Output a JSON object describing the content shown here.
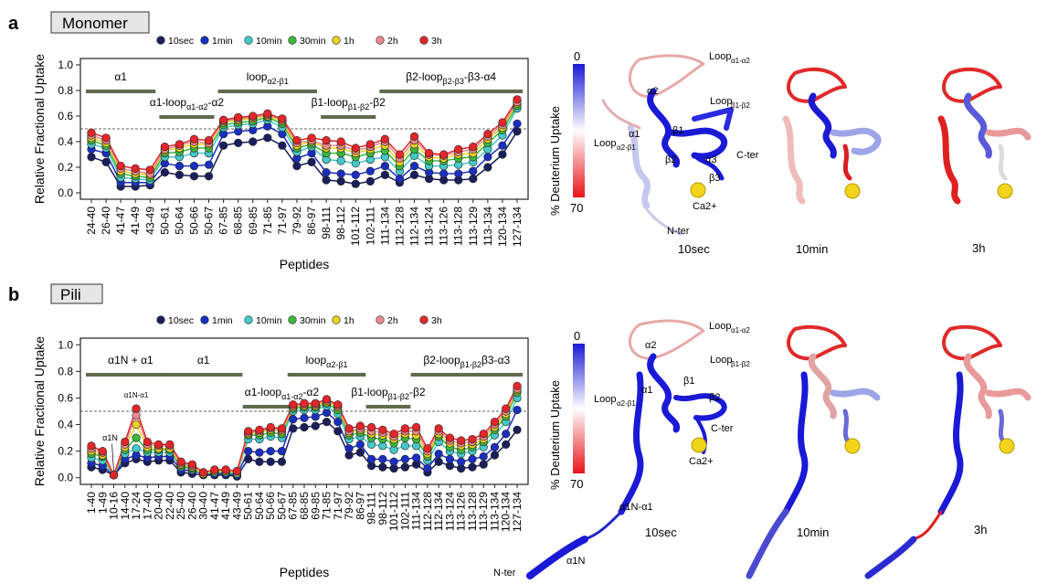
{
  "panels": [
    {
      "letter": "a",
      "title": "Monomer",
      "chart_data": {
        "type": "line",
        "ylabel": "Relative Fractional Uptake",
        "xlabel": "Peptides",
        "ylim": [
          -0.05,
          1.05
        ],
        "yticks": [
          "0.0",
          "0.2",
          "0.4",
          "0.6",
          "0.8",
          "1.0"
        ],
        "reference_line": 0.5,
        "categories": [
          "24-40",
          "26-40",
          "41-47",
          "41-49",
          "43-49",
          "50-61",
          "50-64",
          "50-66",
          "50-67",
          "67-85",
          "68-85",
          "69-85",
          "71-85",
          "71-97",
          "79-92",
          "86-97",
          "98-111",
          "98-112",
          "101-112",
          "102-111",
          "111-134",
          "112-128",
          "112-134",
          "113-124",
          "113-126",
          "113-128",
          "113-129",
          "113-134",
          "120-134",
          "127-134"
        ],
        "series": [
          {
            "name": "10sec",
            "color": "#1a1f5c",
            "values": [
              0.28,
              0.24,
              0.05,
              0.05,
              0.06,
              0.16,
              0.14,
              0.13,
              0.13,
              0.37,
              0.39,
              0.4,
              0.43,
              0.37,
              0.21,
              0.24,
              0.1,
              0.09,
              0.07,
              0.09,
              0.14,
              0.08,
              0.14,
              0.11,
              0.1,
              0.1,
              0.11,
              0.2,
              0.3,
              0.48
            ]
          },
          {
            "name": "1min",
            "color": "#1b2fbf",
            "values": [
              0.34,
              0.31,
              0.08,
              0.08,
              0.08,
              0.23,
              0.21,
              0.21,
              0.22,
              0.46,
              0.48,
              0.49,
              0.52,
              0.46,
              0.27,
              0.31,
              0.16,
              0.15,
              0.14,
              0.17,
              0.21,
              0.11,
              0.21,
              0.16,
              0.15,
              0.15,
              0.17,
              0.28,
              0.37,
              0.54
            ]
          },
          {
            "name": "10min",
            "color": "#45c9c9",
            "values": [
              0.38,
              0.35,
              0.12,
              0.11,
              0.1,
              0.28,
              0.28,
              0.31,
              0.31,
              0.51,
              0.53,
              0.54,
              0.57,
              0.51,
              0.32,
              0.36,
              0.26,
              0.25,
              0.23,
              0.26,
              0.28,
              0.17,
              0.29,
              0.21,
              0.21,
              0.22,
              0.24,
              0.34,
              0.45,
              0.66
            ]
          },
          {
            "name": "30min",
            "color": "#3cb93c",
            "values": [
              0.41,
              0.37,
              0.15,
              0.13,
              0.12,
              0.31,
              0.32,
              0.35,
              0.35,
              0.53,
              0.55,
              0.56,
              0.59,
              0.54,
              0.35,
              0.38,
              0.31,
              0.31,
              0.28,
              0.31,
              0.33,
              0.21,
              0.34,
              0.25,
              0.25,
              0.27,
              0.28,
              0.39,
              0.49,
              0.68
            ]
          },
          {
            "name": "1h",
            "color": "#f0d21e",
            "values": [
              0.43,
              0.39,
              0.17,
              0.15,
              0.14,
              0.33,
              0.35,
              0.38,
              0.38,
              0.55,
              0.57,
              0.58,
              0.6,
              0.56,
              0.37,
              0.4,
              0.35,
              0.35,
              0.31,
              0.34,
              0.37,
              0.24,
              0.38,
              0.28,
              0.27,
              0.3,
              0.31,
              0.42,
              0.51,
              0.7
            ]
          },
          {
            "name": "2h",
            "color": "#ec8a8a",
            "values": [
              0.45,
              0.41,
              0.19,
              0.17,
              0.15,
              0.34,
              0.37,
              0.4,
              0.39,
              0.56,
              0.58,
              0.59,
              0.61,
              0.57,
              0.39,
              0.41,
              0.37,
              0.37,
              0.33,
              0.36,
              0.4,
              0.27,
              0.41,
              0.3,
              0.29,
              0.32,
              0.34,
              0.44,
              0.53,
              0.71
            ]
          },
          {
            "name": "3h",
            "color": "#e4262b",
            "values": [
              0.47,
              0.43,
              0.21,
              0.19,
              0.18,
              0.36,
              0.38,
              0.42,
              0.41,
              0.57,
              0.59,
              0.6,
              0.62,
              0.58,
              0.41,
              0.43,
              0.41,
              0.4,
              0.35,
              0.38,
              0.42,
              0.3,
              0.44,
              0.31,
              0.3,
              0.34,
              0.36,
              0.46,
              0.55,
              0.73
            ]
          }
        ],
        "segments": [
          {
            "label": "α1",
            "sub": "",
            "tail": "",
            "from": "24-40",
            "to": "43-49",
            "row": 1
          },
          {
            "label": "α1-loop",
            "sub": "α1-α2",
            "tail": "-α2",
            "from": "50-61",
            "to": "50-67",
            "row": 2
          },
          {
            "label": "loop",
            "sub": "α2-β1",
            "tail": "",
            "from": "67-85",
            "to": "86-97",
            "row": 1
          },
          {
            "label": "β1-loop",
            "sub": "β1-β2",
            "tail": "-β2",
            "from": "98-111",
            "to": "102-111",
            "row": 2
          },
          {
            "label": "β2-loop",
            "sub": "β2-β3",
            "tail": "-β3-α4",
            "from": "111-134",
            "to": "127-134",
            "row": 1
          }
        ],
        "annotations": []
      },
      "structure_labels": [
        "Loop",
        "α1-α2",
        "α2",
        "Loop",
        "β1-β2",
        "α1",
        "β1",
        "Loop",
        "α2-β1",
        "β2",
        "α3",
        "C-ter",
        "β3",
        "Ca2+",
        "N-ter"
      ],
      "times": [
        "10sec",
        "10min",
        "3h"
      ],
      "scale": {
        "title": "% Deuterium Uptake",
        "top": "0",
        "bottom": "70"
      }
    },
    {
      "letter": "b",
      "title": "Pili",
      "chart_data": {
        "type": "line",
        "ylabel": "Relative Fractional Uptake",
        "xlabel": "Peptides",
        "ylim": [
          -0.05,
          1.05
        ],
        "yticks": [
          "0.0",
          "0.2",
          "0.4",
          "0.6",
          "0.8",
          "1.0"
        ],
        "reference_line": 0.5,
        "categories": [
          "1-40",
          "1-49",
          "10-16",
          "14-40",
          "17-24",
          "17-40",
          "20-40",
          "22-40",
          "25-40",
          "26-40",
          "30-40",
          "41-47",
          "41-49",
          "43-49",
          "50-61",
          "50-64",
          "50-66",
          "50-67",
          "67-85",
          "68-85",
          "69-85",
          "71-85",
          "71-97",
          "79-92",
          "86-97",
          "98-111",
          "98-112",
          "101-112",
          "102-111",
          "111-134",
          "112-128",
          "112-134",
          "113-124",
          "113-126",
          "113-128",
          "113-129",
          "113-134",
          "120-134",
          "127-134"
        ],
        "series": [
          {
            "name": "10sec",
            "color": "#1a1f5c",
            "values": [
              0.08,
              0.06,
              0.02,
              0.11,
              0.14,
              0.12,
              0.13,
              0.13,
              0.04,
              0.03,
              0.02,
              0.02,
              0.02,
              0.01,
              0.14,
              0.12,
              0.12,
              0.12,
              0.37,
              0.38,
              0.39,
              0.42,
              0.35,
              0.17,
              0.19,
              0.09,
              0.08,
              0.07,
              0.08,
              0.1,
              0.04,
              0.12,
              0.09,
              0.07,
              0.08,
              0.1,
              0.17,
              0.25,
              0.36
            ]
          },
          {
            "name": "1min",
            "color": "#1b2fbf",
            "values": [
              0.11,
              0.09,
              0.02,
              0.14,
              0.17,
              0.15,
              0.16,
              0.16,
              0.06,
              0.05,
              0.03,
              0.03,
              0.03,
              0.02,
              0.2,
              0.19,
              0.2,
              0.2,
              0.44,
              0.45,
              0.46,
              0.49,
              0.42,
              0.22,
              0.25,
              0.14,
              0.14,
              0.12,
              0.14,
              0.15,
              0.07,
              0.18,
              0.14,
              0.12,
              0.14,
              0.16,
              0.23,
              0.33,
              0.51
            ]
          },
          {
            "name": "10min",
            "color": "#45c9c9",
            "values": [
              0.15,
              0.13,
              0.02,
              0.18,
              0.22,
              0.19,
              0.19,
              0.19,
              0.08,
              0.06,
              0.03,
              0.04,
              0.04,
              0.03,
              0.29,
              0.29,
              0.31,
              0.3,
              0.5,
              0.51,
              0.51,
              0.54,
              0.48,
              0.29,
              0.31,
              0.25,
              0.24,
              0.21,
              0.24,
              0.24,
              0.13,
              0.27,
              0.2,
              0.18,
              0.2,
              0.23,
              0.32,
              0.42,
              0.6
            ]
          },
          {
            "name": "30min",
            "color": "#3cb93c",
            "values": [
              0.18,
              0.16,
              0.02,
              0.21,
              0.3,
              0.21,
              0.21,
              0.21,
              0.09,
              0.07,
              0.03,
              0.05,
              0.05,
              0.04,
              0.32,
              0.32,
              0.34,
              0.33,
              0.52,
              0.53,
              0.53,
              0.56,
              0.51,
              0.32,
              0.34,
              0.3,
              0.29,
              0.26,
              0.3,
              0.29,
              0.16,
              0.31,
              0.23,
              0.21,
              0.23,
              0.27,
              0.36,
              0.46,
              0.64
            ]
          },
          {
            "name": "1h",
            "color": "#f0d21e",
            "values": [
              0.2,
              0.17,
              0.02,
              0.23,
              0.4,
              0.23,
              0.22,
              0.22,
              0.1,
              0.08,
              0.03,
              0.05,
              0.05,
              0.04,
              0.33,
              0.34,
              0.36,
              0.35,
              0.53,
              0.54,
              0.54,
              0.57,
              0.53,
              0.34,
              0.36,
              0.33,
              0.32,
              0.29,
              0.33,
              0.32,
              0.18,
              0.33,
              0.26,
              0.24,
              0.25,
              0.29,
              0.38,
              0.48,
              0.66
            ]
          },
          {
            "name": "2h",
            "color": "#ec8a8a",
            "values": [
              0.22,
              0.19,
              0.02,
              0.25,
              0.47,
              0.25,
              0.24,
              0.24,
              0.11,
              0.09,
              0.04,
              0.06,
              0.06,
              0.05,
              0.34,
              0.35,
              0.37,
              0.36,
              0.54,
              0.55,
              0.55,
              0.58,
              0.54,
              0.35,
              0.37,
              0.35,
              0.34,
              0.31,
              0.35,
              0.35,
              0.2,
              0.35,
              0.28,
              0.26,
              0.27,
              0.31,
              0.4,
              0.5,
              0.67
            ]
          },
          {
            "name": "3h",
            "color": "#e4262b",
            "values": [
              0.24,
              0.2,
              0.02,
              0.27,
              0.52,
              0.27,
              0.25,
              0.25,
              0.12,
              0.1,
              0.04,
              0.06,
              0.06,
              0.05,
              0.35,
              0.36,
              0.38,
              0.37,
              0.55,
              0.56,
              0.56,
              0.59,
              0.55,
              0.37,
              0.39,
              0.38,
              0.36,
              0.33,
              0.37,
              0.38,
              0.22,
              0.37,
              0.3,
              0.28,
              0.29,
              0.33,
              0.42,
              0.52,
              0.69
            ]
          }
        ],
        "segments": [
          {
            "label": "α1N + α1",
            "sub": "",
            "tail": "",
            "from": "1-40",
            "to": "22-40",
            "row": 1
          },
          {
            "label": "α1",
            "sub": "",
            "tail": "",
            "from": "22-40",
            "to": "43-49",
            "row": 1
          },
          {
            "label": "α1-loop",
            "sub": "α1-α2",
            "tail": "-α2",
            "from": "50-61",
            "to": "69-85",
            "row": 2
          },
          {
            "label": "loop",
            "sub": "α2-β1",
            "tail": "",
            "from": "67-85",
            "to": "86-97",
            "row": 1
          },
          {
            "label": "β1-loop",
            "sub": "β1-β2",
            "tail": "-β2",
            "from": "98-111",
            "to": "102-111",
            "row": 2
          },
          {
            "label": "β2-loop",
            "sub": "β1-β2",
            "tail": "β3-α3",
            "from": "111-134",
            "to": "127-134",
            "row": 1
          }
        ],
        "annotations": [
          {
            "text": "α1N-α1",
            "at": "17-24"
          },
          {
            "text": "α1N",
            "at": "10-16"
          }
        ]
      },
      "structure_labels": [
        "Loop",
        "α1-α2",
        "α2",
        "Loop",
        "β1-β2",
        "β1",
        "α1",
        "β2",
        "Loop",
        "α2-β1",
        "C-ter",
        "Ca2+",
        "α1N-α1",
        "α1N",
        "N-ter"
      ],
      "times": [
        "10sec",
        "10min",
        "3h"
      ],
      "scale": {
        "title": "% Deuterium Uptake",
        "top": "0",
        "bottom": "70"
      }
    }
  ]
}
